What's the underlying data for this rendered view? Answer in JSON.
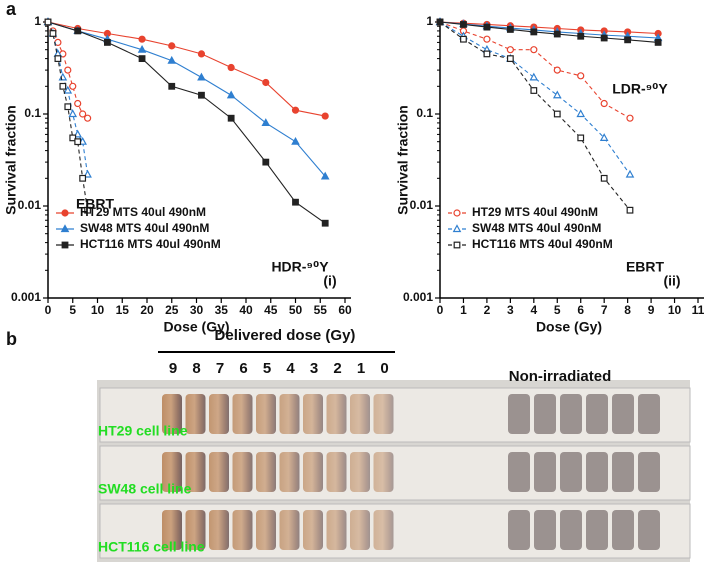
{
  "panel_labels": [
    "a",
    "b"
  ],
  "chart_data": [
    {
      "type": "line",
      "log_y": true,
      "legend": "lower left",
      "xlabel": "Dose (Gy)",
      "ylabel": "Survival fraction",
      "xlim": [
        0,
        60
      ],
      "xticks": [
        0,
        5,
        10,
        15,
        20,
        25,
        30,
        35,
        40,
        45,
        50,
        55,
        60
      ],
      "ylim": [
        0.001,
        1
      ],
      "yticks": [
        0.001,
        0.01,
        0.1,
        1
      ],
      "annotations": [
        "EBRT",
        "HDR-⁹⁰Y",
        "(i)"
      ],
      "series": [
        {
          "name": "HT29 MTS 40ul 490nM",
          "color": "#e8432f",
          "marker": "circle",
          "filled": true,
          "dashed": false,
          "x": [
            0,
            6,
            12,
            19,
            25,
            31,
            37,
            44,
            50,
            56
          ],
          "values": [
            1,
            0.85,
            0.75,
            0.65,
            0.55,
            0.45,
            0.32,
            0.22,
            0.11,
            0.095
          ]
        },
        {
          "name": "SW48 MTS 40ul 490nM",
          "color": "#2f7fd0",
          "marker": "triangle",
          "filled": true,
          "dashed": false,
          "x": [
            0,
            6,
            12,
            19,
            25,
            31,
            37,
            44,
            50,
            56
          ],
          "values": [
            1,
            0.8,
            0.65,
            0.5,
            0.38,
            0.25,
            0.16,
            0.08,
            0.05,
            0.021
          ]
        },
        {
          "name": "HCT116 MTS 40ul 490nM",
          "color": "#222222",
          "marker": "square",
          "filled": true,
          "dashed": false,
          "x": [
            0,
            6,
            12,
            19,
            25,
            31,
            37,
            44,
            50,
            56
          ],
          "values": [
            1,
            0.8,
            0.6,
            0.4,
            0.2,
            0.16,
            0.09,
            0.03,
            0.011,
            0.0065
          ]
        },
        {
          "color": "#e8432f",
          "marker": "circle",
          "filled": false,
          "dashed": true,
          "x": [
            0,
            1,
            2,
            3,
            4,
            5,
            6,
            7,
            8
          ],
          "values": [
            1,
            0.8,
            0.6,
            0.45,
            0.3,
            0.2,
            0.13,
            0.1,
            0.09
          ]
        },
        {
          "color": "#2f7fd0",
          "marker": "triangle",
          "filled": false,
          "dashed": true,
          "x": [
            0,
            1,
            2,
            3,
            4,
            5,
            6,
            7,
            8
          ],
          "values": [
            1,
            0.75,
            0.45,
            0.25,
            0.18,
            0.1,
            0.06,
            0.05,
            0.022
          ]
        },
        {
          "color": "#222222",
          "marker": "square",
          "filled": false,
          "dashed": true,
          "x": [
            0,
            1,
            2,
            3,
            4,
            5,
            6,
            7,
            8
          ],
          "values": [
            1,
            0.75,
            0.4,
            0.2,
            0.12,
            0.055,
            0.05,
            0.02,
            0.009
          ]
        }
      ]
    },
    {
      "type": "line",
      "log_y": true,
      "legend": "lower left",
      "xlabel": "Dose (Gy)",
      "ylabel": "Survival fraction",
      "xlim": [
        0,
        11
      ],
      "xticks": [
        0,
        1,
        2,
        3,
        4,
        5,
        6,
        7,
        8,
        9,
        10,
        11
      ],
      "ylim": [
        0.001,
        1
      ],
      "yticks": [
        0.001,
        0.01,
        0.1,
        1
      ],
      "annotations": [
        "LDR-⁹⁰Y",
        "EBRT",
        "(ii)"
      ],
      "series": [
        {
          "name": "HT29 MTS 40ul 490nM",
          "color": "#e8432f",
          "marker": "circle",
          "filled": false,
          "dashed": true,
          "x": [
            0,
            1,
            2,
            3,
            4,
            5,
            6,
            7,
            8.1
          ],
          "values": [
            1,
            0.8,
            0.65,
            0.5,
            0.5,
            0.3,
            0.26,
            0.13,
            0.09
          ]
        },
        {
          "name": "SW48 MTS 40ul 490nM",
          "color": "#2f7fd0",
          "marker": "triangle",
          "filled": false,
          "dashed": true,
          "x": [
            0,
            1,
            2,
            3,
            4,
            5,
            6,
            7,
            8.1
          ],
          "values": [
            1,
            0.7,
            0.5,
            0.4,
            0.25,
            0.16,
            0.1,
            0.055,
            0.022
          ]
        },
        {
          "name": "HCT116 MTS 40ul 490nM",
          "color": "#222222",
          "marker": "square",
          "filled": false,
          "dashed": true,
          "x": [
            0,
            1,
            2,
            3,
            4,
            5,
            6,
            7,
            8.1
          ],
          "values": [
            1,
            0.65,
            0.45,
            0.4,
            0.18,
            0.1,
            0.055,
            0.02,
            0.009
          ]
        },
        {
          "color": "#e8432f",
          "marker": "circle",
          "filled": true,
          "dashed": false,
          "x": [
            0,
            1,
            2,
            3,
            4,
            5,
            6,
            7,
            8,
            9.3
          ],
          "values": [
            1,
            0.97,
            0.94,
            0.91,
            0.88,
            0.85,
            0.82,
            0.8,
            0.78,
            0.75
          ]
        },
        {
          "color": "#2f7fd0",
          "marker": "triangle",
          "filled": true,
          "dashed": false,
          "x": [
            0,
            1,
            2,
            3,
            4,
            5,
            6,
            7,
            8,
            9.3
          ],
          "values": [
            1,
            0.95,
            0.9,
            0.86,
            0.82,
            0.78,
            0.75,
            0.72,
            0.7,
            0.67
          ]
        },
        {
          "color": "#222222",
          "marker": "square",
          "filled": true,
          "dashed": false,
          "x": [
            0,
            1,
            2,
            3,
            4,
            5,
            6,
            7,
            8,
            9.3
          ],
          "values": [
            1,
            0.94,
            0.88,
            0.83,
            0.78,
            0.74,
            0.7,
            0.67,
            0.64,
            0.6
          ]
        }
      ]
    }
  ],
  "photo": {
    "header": "Delivered dose (Gy)",
    "doses": [
      "9",
      "8",
      "7",
      "6",
      "5",
      "4",
      "3",
      "2",
      "1",
      "0"
    ],
    "control": "Non-irradiated",
    "rows": [
      "HT29 cell line",
      "SW48 cell line",
      "HCT116 cell line"
    ]
  }
}
